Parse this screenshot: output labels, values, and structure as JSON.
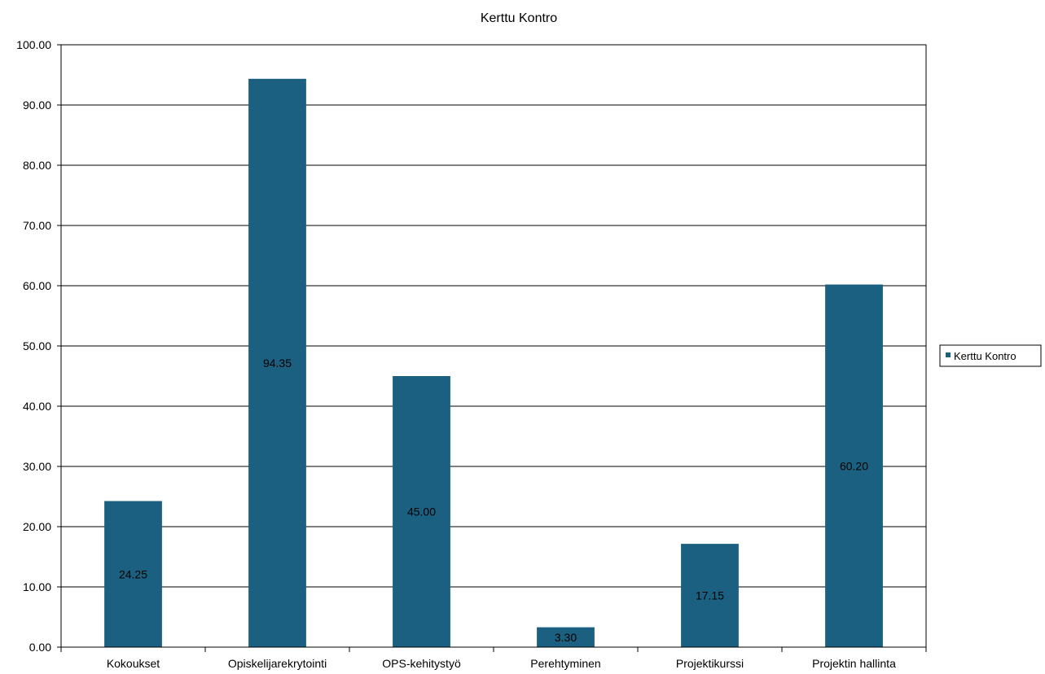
{
  "chart_data": {
    "type": "bar",
    "title": "Kerttu Kontro",
    "xlabel": "",
    "ylabel": "",
    "categories": [
      "Kokoukset",
      "Opiskelijarekrytointi",
      "OPS-kehitystyö",
      "Perehtyminen",
      "Projektikurssi",
      "Projektin hallinta"
    ],
    "series": [
      {
        "name": "Kerttu Kontro",
        "values": [
          24.25,
          94.35,
          45.0,
          3.3,
          17.15,
          60.2
        ],
        "color": "#1b6080"
      }
    ],
    "data_labels": [
      "24.25",
      "94.35",
      "45.00",
      "3.30",
      "17.15",
      "60.20"
    ],
    "ylim": [
      0,
      100
    ],
    "yticks": [
      "0.00",
      "10.00",
      "20.00",
      "30.00",
      "40.00",
      "50.00",
      "60.00",
      "70.00",
      "80.00",
      "90.00",
      "100.00"
    ],
    "grid": true,
    "legend_position": "right"
  }
}
